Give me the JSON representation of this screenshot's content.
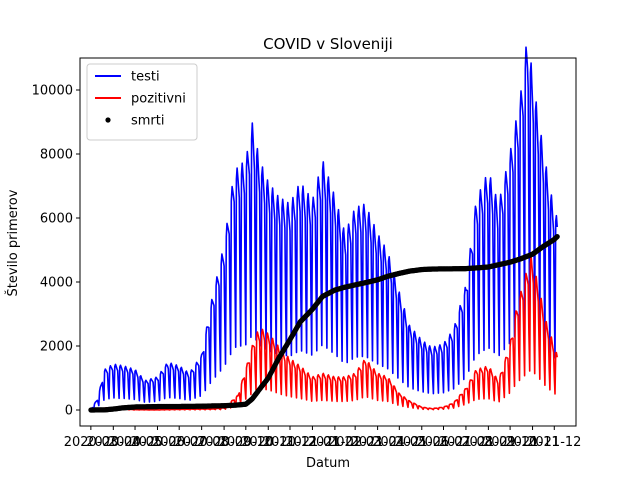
{
  "chart_data": {
    "type": "line",
    "title": "COVID v Sloveniji",
    "xlabel": "Datum",
    "ylabel": "Število primerov",
    "ylim": [
      -500,
      11000
    ],
    "yticks": [
      0,
      2000,
      4000,
      6000,
      8000,
      10000
    ],
    "x_range": [
      "2020-02-15",
      "2021-12-31"
    ],
    "xticks": [
      "2020-03",
      "2020-04",
      "2020-05",
      "2020-06",
      "2020-07",
      "2020-08",
      "2020-09",
      "2020-10",
      "2020-11",
      "2020-12",
      "2021-01",
      "2021-02",
      "2021-03",
      "2021-04",
      "2021-05",
      "2021-06",
      "2021-07",
      "2021-08",
      "2021-09",
      "2021-10",
      "2021-11",
      "2021-12"
    ],
    "grid": false,
    "legend_position": "upper-left",
    "series": [
      {
        "name": "testi",
        "style": "line",
        "color": "#0000ff",
        "weekly_pattern": true,
        "points": [
          [
            "2020-03-01",
            10
          ],
          [
            "2020-03-10",
            300
          ],
          [
            "2020-03-20",
            1100
          ],
          [
            "2020-04-01",
            1250
          ],
          [
            "2020-04-15",
            1200
          ],
          [
            "2020-05-01",
            1100
          ],
          [
            "2020-05-15",
            800
          ],
          [
            "2020-06-01",
            900
          ],
          [
            "2020-06-15",
            1300
          ],
          [
            "2020-07-01",
            1200
          ],
          [
            "2020-07-15",
            1000
          ],
          [
            "2020-08-01",
            1500
          ],
          [
            "2020-08-15",
            3000
          ],
          [
            "2020-09-01",
            4500
          ],
          [
            "2020-09-15",
            6500
          ],
          [
            "2020-10-01",
            6800
          ],
          [
            "2020-10-10",
            7800
          ],
          [
            "2020-10-20",
            6800
          ],
          [
            "2020-11-01",
            6200
          ],
          [
            "2020-11-15",
            5800
          ],
          [
            "2020-12-01",
            5600
          ],
          [
            "2020-12-15",
            6200
          ],
          [
            "2021-01-01",
            5700
          ],
          [
            "2021-01-15",
            6800
          ],
          [
            "2021-02-01",
            5800
          ],
          [
            "2021-02-15",
            4800
          ],
          [
            "2021-03-01",
            5500
          ],
          [
            "2021-03-15",
            5600
          ],
          [
            "2021-04-01",
            4800
          ],
          [
            "2021-04-15",
            4300
          ],
          [
            "2021-05-01",
            3200
          ],
          [
            "2021-05-15",
            2300
          ],
          [
            "2021-06-01",
            1900
          ],
          [
            "2021-06-15",
            1700
          ],
          [
            "2021-07-01",
            1800
          ],
          [
            "2021-07-15",
            2200
          ],
          [
            "2021-08-01",
            3400
          ],
          [
            "2021-08-15",
            5700
          ],
          [
            "2021-09-01",
            6500
          ],
          [
            "2021-09-15",
            5600
          ],
          [
            "2021-10-01",
            7000
          ],
          [
            "2021-10-15",
            8500
          ],
          [
            "2021-10-25",
            10200
          ],
          [
            "2021-11-05",
            8500
          ],
          [
            "2021-11-15",
            7200
          ],
          [
            "2021-11-25",
            6000
          ],
          [
            "2021-12-05",
            5200
          ]
        ]
      },
      {
        "name": "pozitivni",
        "style": "line",
        "color": "#ff0000",
        "weekly_pattern": true,
        "points": [
          [
            "2020-03-01",
            0
          ],
          [
            "2020-03-15",
            40
          ],
          [
            "2020-03-25",
            60
          ],
          [
            "2020-04-15",
            30
          ],
          [
            "2020-05-01",
            10
          ],
          [
            "2020-06-01",
            5
          ],
          [
            "2020-07-01",
            20
          ],
          [
            "2020-07-20",
            25
          ],
          [
            "2020-08-15",
            30
          ],
          [
            "2020-09-01",
            60
          ],
          [
            "2020-09-20",
            400
          ],
          [
            "2020-10-05",
            1400
          ],
          [
            "2020-10-15",
            2100
          ],
          [
            "2020-10-25",
            2200
          ],
          [
            "2020-11-05",
            2000
          ],
          [
            "2020-11-20",
            1600
          ],
          [
            "2020-12-01",
            1400
          ],
          [
            "2020-12-15",
            1200
          ],
          [
            "2021-01-01",
            900
          ],
          [
            "2021-01-15",
            1000
          ],
          [
            "2021-02-01",
            900
          ],
          [
            "2021-02-15",
            900
          ],
          [
            "2021-03-01",
            1000
          ],
          [
            "2021-03-15",
            1400
          ],
          [
            "2021-04-01",
            1000
          ],
          [
            "2021-04-15",
            900
          ],
          [
            "2021-05-01",
            450
          ],
          [
            "2021-05-15",
            250
          ],
          [
            "2021-06-01",
            80
          ],
          [
            "2021-06-15",
            40
          ],
          [
            "2021-07-01",
            80
          ],
          [
            "2021-07-15",
            200
          ],
          [
            "2021-08-01",
            600
          ],
          [
            "2021-08-15",
            1100
          ],
          [
            "2021-09-01",
            1200
          ],
          [
            "2021-09-15",
            800
          ],
          [
            "2021-10-01",
            1800
          ],
          [
            "2021-10-10",
            2800
          ],
          [
            "2021-10-20",
            3500
          ],
          [
            "2021-10-30",
            4200
          ],
          [
            "2021-11-10",
            3300
          ],
          [
            "2021-11-20",
            2400
          ],
          [
            "2021-11-30",
            1800
          ],
          [
            "2021-12-05",
            1500
          ]
        ]
      },
      {
        "name": "smrti",
        "style": "markers",
        "color": "#000000",
        "points": [
          [
            "2020-03-01",
            0
          ],
          [
            "2020-03-20",
            5
          ],
          [
            "2020-04-01",
            30
          ],
          [
            "2020-04-15",
            70
          ],
          [
            "2020-05-01",
            95
          ],
          [
            "2020-06-01",
            108
          ],
          [
            "2020-07-01",
            110
          ],
          [
            "2020-08-01",
            120
          ],
          [
            "2020-09-01",
            135
          ],
          [
            "2020-09-15",
            150
          ],
          [
            "2020-10-01",
            180
          ],
          [
            "2020-10-10",
            350
          ],
          [
            "2020-10-20",
            650
          ],
          [
            "2020-11-01",
            1000
          ],
          [
            "2020-11-15",
            1600
          ],
          [
            "2020-12-01",
            2200
          ],
          [
            "2020-12-15",
            2750
          ],
          [
            "2021-01-01",
            3150
          ],
          [
            "2021-01-15",
            3550
          ],
          [
            "2021-02-01",
            3750
          ],
          [
            "2021-02-15",
            3840
          ],
          [
            "2021-03-01",
            3910
          ],
          [
            "2021-03-15",
            3980
          ],
          [
            "2021-04-01",
            4070
          ],
          [
            "2021-04-15",
            4180
          ],
          [
            "2021-05-01",
            4270
          ],
          [
            "2021-05-15",
            4340
          ],
          [
            "2021-06-01",
            4390
          ],
          [
            "2021-06-15",
            4405
          ],
          [
            "2021-07-01",
            4410
          ],
          [
            "2021-08-01",
            4420
          ],
          [
            "2021-08-15",
            4440
          ],
          [
            "2021-09-01",
            4470
          ],
          [
            "2021-09-15",
            4540
          ],
          [
            "2021-10-01",
            4620
          ],
          [
            "2021-10-15",
            4720
          ],
          [
            "2021-11-01",
            4870
          ],
          [
            "2021-11-15",
            5100
          ],
          [
            "2021-12-01",
            5330
          ],
          [
            "2021-12-05",
            5420
          ]
        ]
      }
    ]
  }
}
